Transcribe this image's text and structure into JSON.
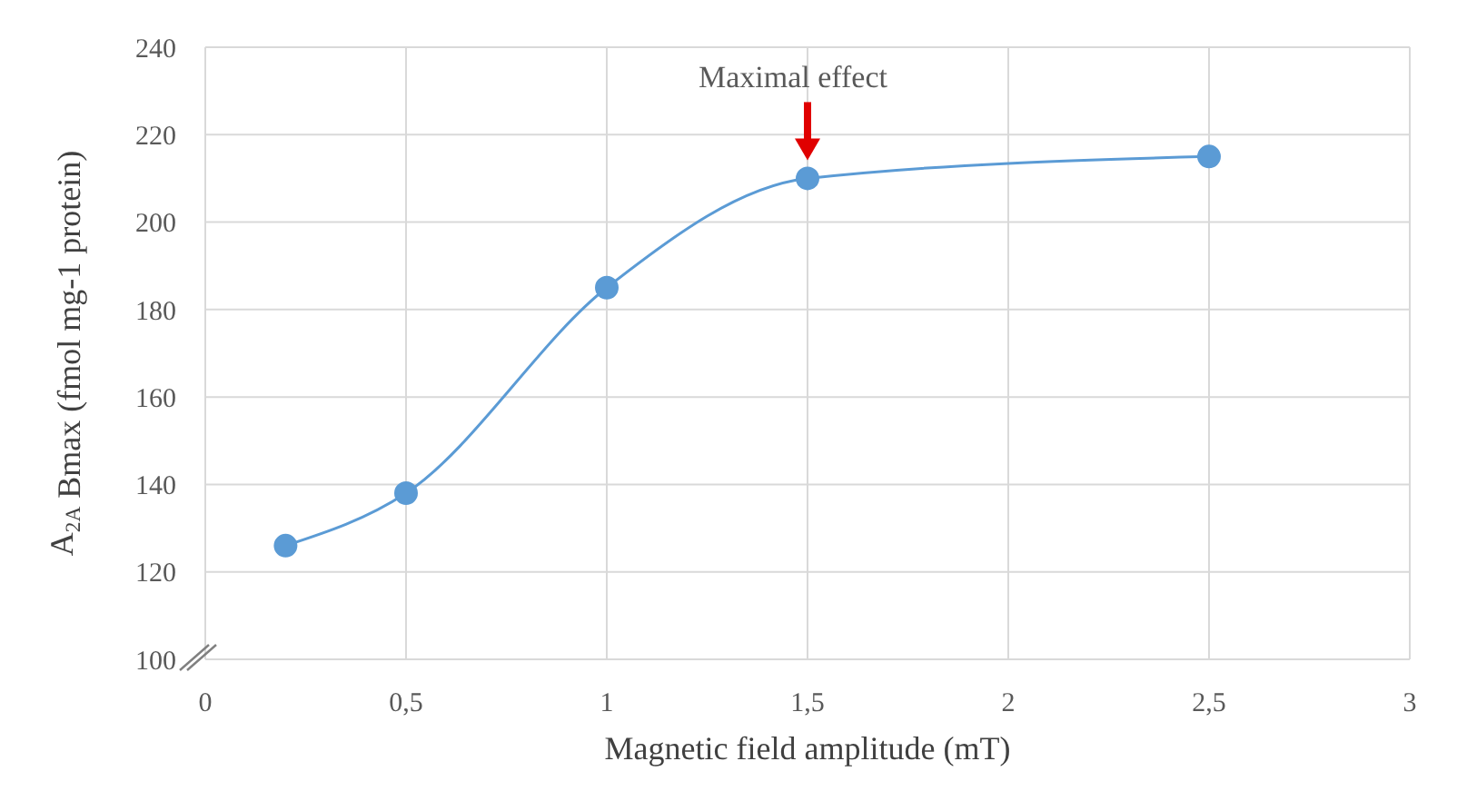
{
  "chart_data": {
    "type": "line",
    "xlabel": "Magnetic field amplitude (mT)",
    "ylabel": "A$_{2A}$ Bmax (fmol mg-1 protein)",
    "x": [
      0.2,
      0.5,
      1,
      1.5,
      2.5
    ],
    "series": [
      {
        "color": "#5b9bd5",
        "values": [
          126,
          138,
          185,
          210,
          215
        ]
      }
    ],
    "xlim": [
      0,
      3
    ],
    "xticks": [
      0,
      {
        "value": 0.5,
        "label": "0,5"
      },
      1,
      {
        "value": 1.5,
        "label": "1,5"
      },
      2,
      {
        "value": 2.5,
        "label": "2,5"
      },
      3
    ],
    "ylim": [
      100,
      240
    ],
    "yticks": [
      100,
      120,
      140,
      160,
      180,
      200,
      220,
      240
    ],
    "grid": true,
    "marker": "circle",
    "line_style": "solid",
    "annotations": [
      {
        "text": "Maximal effect",
        "x": 1.5,
        "y": 210
      }
    ]
  }
}
